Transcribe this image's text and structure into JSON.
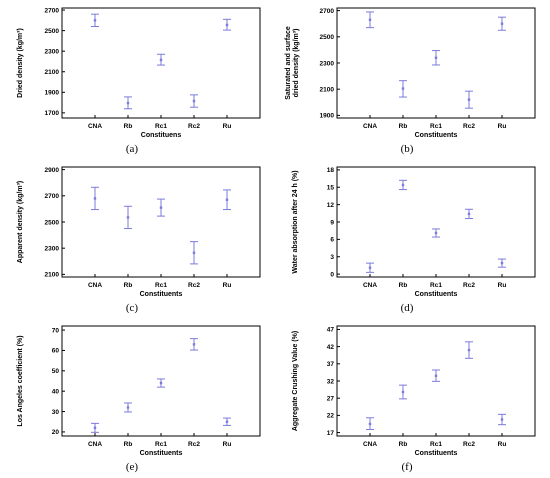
{
  "chart_data": [
    {
      "type": "scatter",
      "caption": "(a)",
      "ylabel": "Dried density (kg/m³)",
      "xlabel": "Constituens",
      "categories": [
        "CNA",
        "Rb",
        "Rc1",
        "Rc2",
        "Ru"
      ],
      "ylim": [
        1650,
        2720
      ],
      "yticks": [
        "1700",
        "1900",
        "2100",
        "2300",
        "2500",
        "2700"
      ],
      "series": [
        {
          "mean": [
            2600,
            1795,
            2215,
            1815,
            2555
          ],
          "low": [
            2540,
            1740,
            2165,
            1755,
            2505
          ],
          "high": [
            2660,
            1855,
            2270,
            1875,
            2610
          ]
        }
      ],
      "color": "#7b7bdc"
    },
    {
      "type": "scatter",
      "caption": "(b)",
      "ylabel": "Saturated and surface dried density (kg/m³)",
      "xlabel": "Constituents",
      "categories": [
        "CNA",
        "Rb",
        "Rc1",
        "Rc2",
        "Ru"
      ],
      "ylim": [
        1880,
        2720
      ],
      "yticks": [
        "1900",
        "2100",
        "2300",
        "2500",
        "2700"
      ],
      "series": [
        {
          "mean": [
            2630,
            2105,
            2340,
            2020,
            2600
          ],
          "low": [
            2570,
            2040,
            2285,
            1955,
            2550
          ],
          "high": [
            2690,
            2165,
            2395,
            2085,
            2650
          ]
        }
      ],
      "color": "#7b7bdc"
    },
    {
      "type": "scatter",
      "caption": "(c)",
      "ylabel": "Apparent density (kg/m³)",
      "xlabel": "Constituents",
      "categories": [
        "CNA",
        "Rb",
        "Rc1",
        "Rc2",
        "Ru"
      ],
      "ylim": [
        2080,
        2920
      ],
      "yticks": [
        "2100",
        "2300",
        "2500",
        "2700",
        "2900"
      ],
      "series": [
        {
          "mean": [
            2680,
            2535,
            2610,
            2265,
            2670
          ],
          "low": [
            2595,
            2450,
            2545,
            2180,
            2595
          ],
          "high": [
            2765,
            2620,
            2675,
            2350,
            2745
          ]
        }
      ],
      "color": "#7b7bdc"
    },
    {
      "type": "scatter",
      "caption": "(d)",
      "ylabel": "Water absorption after 24 h (%)",
      "xlabel": "Constituents",
      "categories": [
        "CNA",
        "Rb",
        "Rc1",
        "Rc2",
        "Ru"
      ],
      "ylim": [
        -0.5,
        18.5
      ],
      "yticks": [
        "0",
        "3",
        "6",
        "9",
        "12",
        "15",
        "18"
      ],
      "series": [
        {
          "mean": [
            1.1,
            15.4,
            7.1,
            10.4,
            1.9
          ],
          "low": [
            0.3,
            14.6,
            6.4,
            9.6,
            1.2
          ],
          "high": [
            1.9,
            16.2,
            7.8,
            11.2,
            2.6
          ]
        }
      ],
      "color": "#7b7bdc"
    },
    {
      "type": "scatter",
      "caption": "(e)",
      "ylabel": "Los Angeles coefficient (%)",
      "xlabel": "Constituents",
      "categories": [
        "CNA",
        "Rb",
        "Rc1",
        "Rc2",
        "Ru"
      ],
      "ylim": [
        18,
        72
      ],
      "yticks": [
        "20",
        "30",
        "40",
        "50",
        "60",
        "70"
      ],
      "series": [
        {
          "mean": [
            22,
            32,
            44,
            63,
            25
          ],
          "low": [
            19.8,
            29.8,
            42,
            60.2,
            23.2
          ],
          "high": [
            24.2,
            34.2,
            46,
            65.8,
            26.8
          ]
        }
      ],
      "color": "#7b7bdc"
    },
    {
      "type": "scatter",
      "caption": "(f)",
      "ylabel": "Aggregate Crushing Value (%)",
      "xlabel": "Constituents",
      "categories": [
        "CNA",
        "Rb",
        "Rc1",
        "Rc2",
        "Ru"
      ],
      "ylim": [
        16,
        48
      ],
      "yticks": [
        "17",
        "22",
        "27",
        "32",
        "37",
        "42",
        "47"
      ],
      "series": [
        {
          "mean": [
            19.5,
            28.8,
            33.5,
            41,
            20.8
          ],
          "low": [
            17.9,
            26.8,
            31.9,
            38.6,
            19.3
          ],
          "high": [
            21.3,
            30.8,
            35.2,
            43.4,
            22.3
          ]
        }
      ],
      "color": "#7b7bdc"
    }
  ]
}
